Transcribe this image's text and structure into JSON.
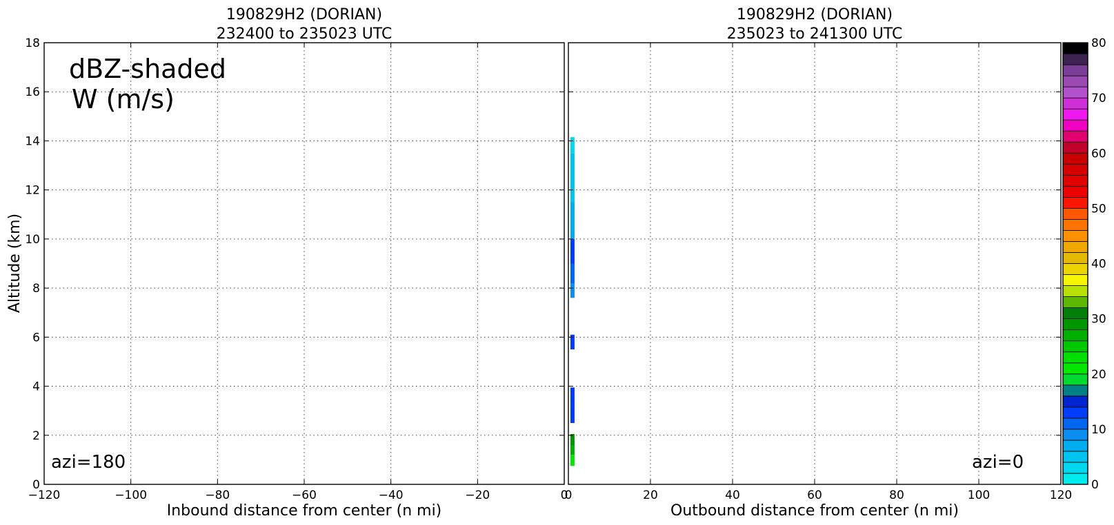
{
  "chart_data": [
    {
      "type": "heatmap",
      "title_line1": "190829H2 (DORIAN)",
      "title_line2": "232400 to 235023 UTC",
      "xlabel": "Inbound distance from center (n mi)",
      "ylabel": "Altitude (km)",
      "xlim": [
        -120,
        0
      ],
      "ylim": [
        0,
        18
      ],
      "x_ticks": [
        "−120",
        "−100",
        "−80",
        "−60",
        "−40",
        "−20",
        "0"
      ],
      "x_tick_values": [
        -120,
        -100,
        -80,
        -60,
        -40,
        -20,
        0
      ],
      "y_ticks": [
        "0",
        "2",
        "4",
        "6",
        "8",
        "10",
        "12",
        "14",
        "16",
        "18"
      ],
      "y_tick_values": [
        0,
        2,
        4,
        6,
        8,
        10,
        12,
        14,
        16,
        18
      ],
      "grid": true,
      "annotation_line1": "dBZ-shaded",
      "annotation_line2": "W (m/s)",
      "azimuth_label": "azi=180",
      "cells": []
    },
    {
      "type": "heatmap",
      "title_line1": "190829H2 (DORIAN)",
      "title_line2": "235023 to 241300 UTC",
      "xlabel": "Outbound distance from center (n mi)",
      "xlim": [
        0,
        120
      ],
      "ylim": [
        0,
        18
      ],
      "x_ticks": [
        "0",
        "20",
        "40",
        "60",
        "80",
        "100",
        "120"
      ],
      "x_tick_values": [
        0,
        20,
        40,
        60,
        80,
        100,
        120
      ],
      "grid": true,
      "azimuth_label": "azi=0",
      "cells": [
        {
          "x0": 0.5,
          "x1": 1.5,
          "y0": 0.75,
          "y1": 1.2,
          "dbz": 21
        },
        {
          "x0": 0.5,
          "x1": 1.5,
          "y0": 1.2,
          "y1": 1.6,
          "dbz": 27
        },
        {
          "x0": 0.5,
          "x1": 1.5,
          "y0": 1.6,
          "y1": 2.05,
          "dbz": 29
        },
        {
          "x0": 0.5,
          "x1": 1.5,
          "y0": 2.5,
          "y1": 3.3,
          "dbz": 12
        },
        {
          "x0": 0.5,
          "x1": 1.5,
          "y0": 3.3,
          "y1": 3.95,
          "dbz": 13
        },
        {
          "x0": 0.5,
          "x1": 1.5,
          "y0": 5.5,
          "y1": 6.1,
          "dbz": 13
        },
        {
          "x0": 0.5,
          "x1": 1.5,
          "y0": 7.6,
          "y1": 8.2,
          "dbz": 8
        },
        {
          "x0": 0.5,
          "x1": 1.5,
          "y0": 8.2,
          "y1": 9.0,
          "dbz": 11
        },
        {
          "x0": 0.5,
          "x1": 1.5,
          "y0": 9.0,
          "y1": 10.0,
          "dbz": 13
        },
        {
          "x0": 0.5,
          "x1": 1.5,
          "y0": 10.0,
          "y1": 11.5,
          "dbz": 6
        },
        {
          "x0": 0.5,
          "x1": 1.5,
          "y0": 11.5,
          "y1": 13.5,
          "dbz": 5
        },
        {
          "x0": 0.5,
          "x1": 1.5,
          "y0": 13.5,
          "y1": 14.15,
          "dbz": 2
        }
      ]
    }
  ],
  "colorbar": {
    "min": 0,
    "max": 80,
    "step": 2,
    "tick_labels": [
      "0",
      "10",
      "20",
      "30",
      "40",
      "50",
      "60",
      "70",
      "80"
    ],
    "tick_values": [
      0,
      10,
      20,
      30,
      40,
      50,
      60,
      70,
      80
    ],
    "colors": [
      "#00ecec",
      "#00d8ee",
      "#00c4ef",
      "#00adf0",
      "#0a8ff0",
      "#0066f2",
      "#003cfb",
      "#0025d0",
      "#007f85",
      "#00d930",
      "#00e800",
      "#00dd00",
      "#00c800",
      "#00ae00",
      "#009600",
      "#00800a",
      "#5cb800",
      "#b8e000",
      "#f6f600",
      "#ecd400",
      "#e4ba00",
      "#f0a800",
      "#ff9000",
      "#ff7400",
      "#ff5600",
      "#ff1400",
      "#ec0000",
      "#e00000",
      "#d60000",
      "#c90000",
      "#c2002a",
      "#e0006e",
      "#f000c0",
      "#ef19ef",
      "#cf2fd8",
      "#b350cc",
      "#9a4ab0",
      "#7a3e98",
      "#3d2350",
      "#000000"
    ]
  }
}
